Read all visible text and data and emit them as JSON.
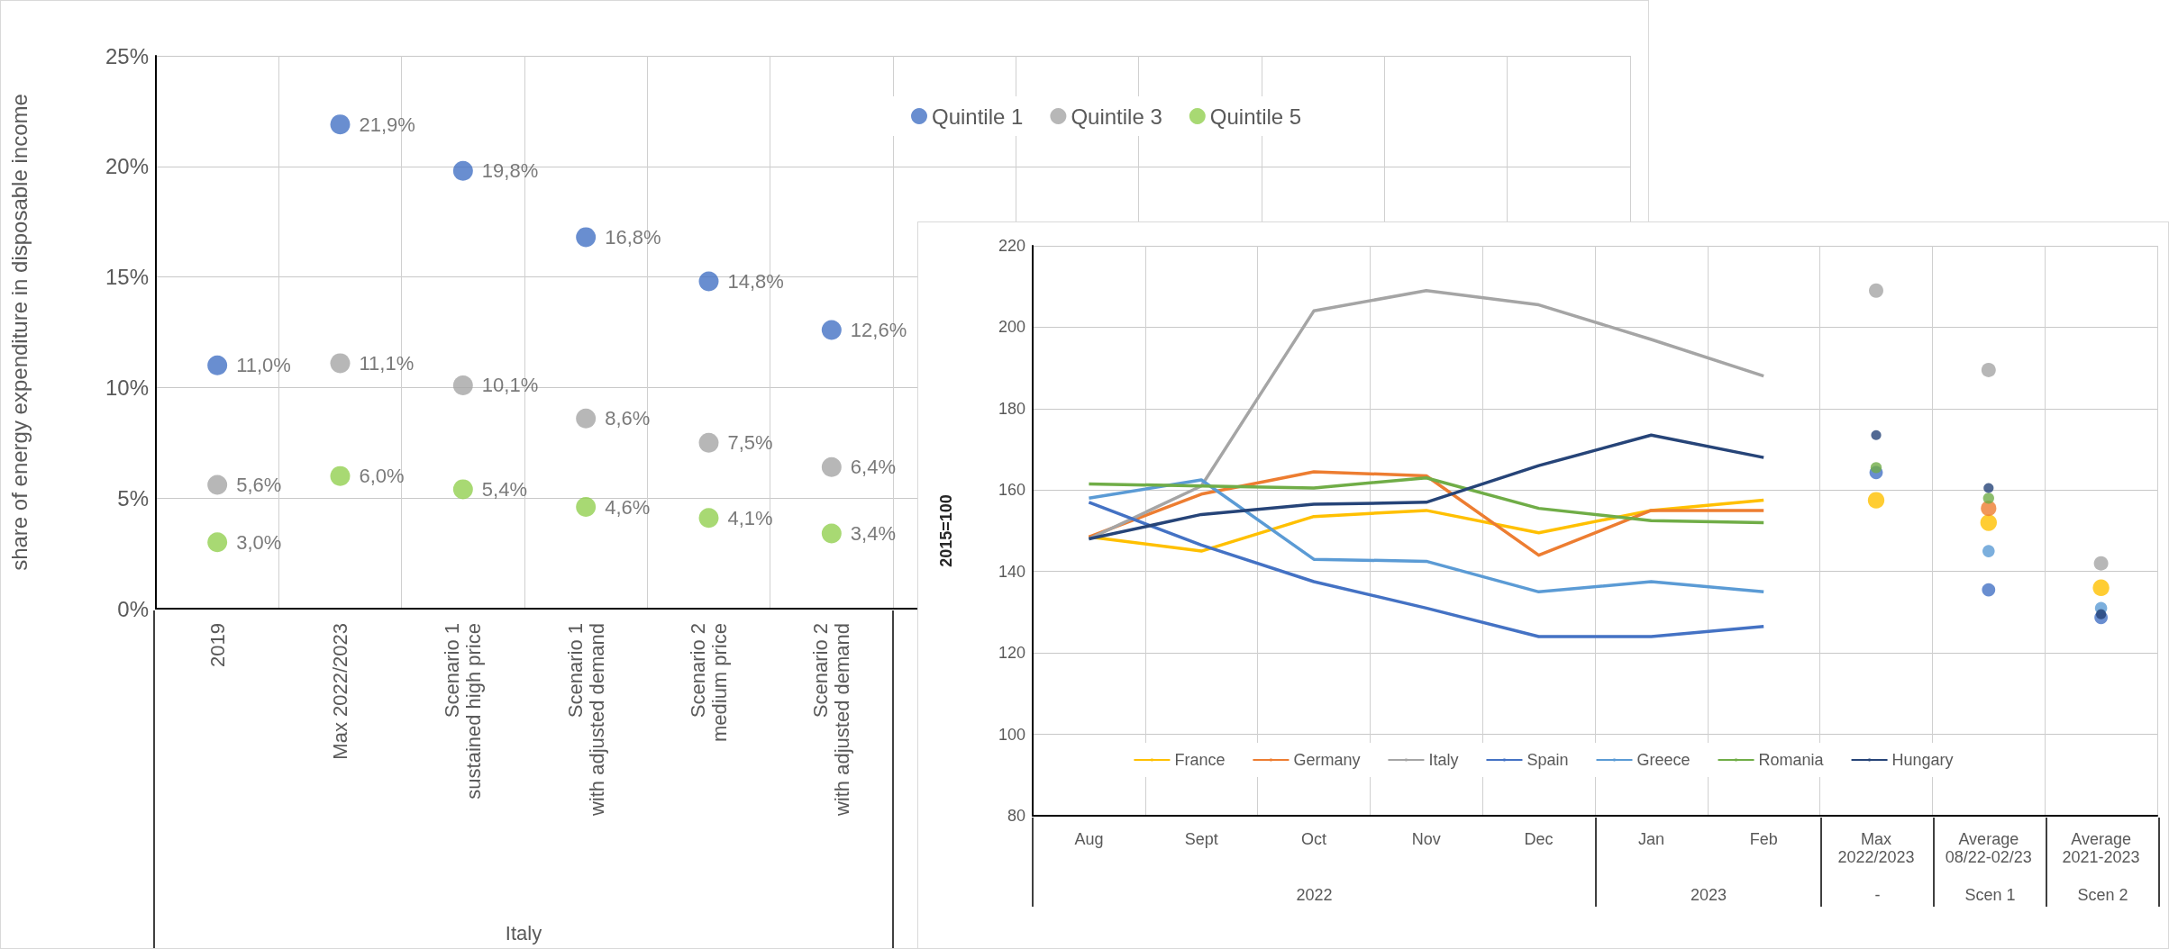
{
  "chart_data": [
    {
      "type": "scatter",
      "ylabel": "share of energy expenditure in disposable income",
      "categories": [
        "2019",
        "Max 2022/2023",
        "Scenario 1\nsustained high price",
        "Scenario 1\nwith adjusted demand",
        "Scenario 2\nmedium price",
        "Scenario 2\nwith adjusted demand",
        null,
        null,
        null,
        null,
        null,
        null
      ],
      "series": [
        {
          "name": "Quintile 1",
          "color": "#4472c4",
          "values": [
            11.0,
            21.9,
            19.8,
            16.8,
            14.8,
            12.6,
            null,
            null,
            null,
            null,
            null,
            null
          ],
          "value_labels": [
            "11,0%",
            "21,9%",
            "19,8%",
            "16,8%",
            "14,8%",
            "12,6%",
            null,
            null,
            null,
            null,
            null,
            null
          ]
        },
        {
          "name": "Quintile 3",
          "color": "#a5a5a5",
          "values": [
            5.6,
            11.1,
            10.1,
            8.6,
            7.5,
            6.4,
            null,
            null,
            null,
            null,
            null,
            null
          ],
          "value_labels": [
            "5,6%",
            "11,1%",
            "10,1%",
            "8,6%",
            "7,5%",
            "6,4%",
            null,
            null,
            null,
            null,
            null,
            null
          ]
        },
        {
          "name": "Quintile 5",
          "color": "#92d050",
          "values": [
            3.0,
            6.0,
            5.4,
            4.6,
            4.1,
            3.4,
            null,
            null,
            null,
            null,
            null,
            null
          ],
          "value_labels": [
            "3,0%",
            "6,0%",
            "5,4%",
            "4,6%",
            "4,1%",
            "3,4%",
            null,
            null,
            null,
            null,
            null,
            null
          ]
        }
      ],
      "ylim": [
        0,
        25
      ],
      "yticks": [
        {
          "value": 0,
          "label": "0%"
        },
        {
          "value": 5,
          "label": "5%"
        },
        {
          "value": 10,
          "label": "10%"
        },
        {
          "value": 15,
          "label": "15%"
        },
        {
          "value": 20,
          "label": "20%"
        },
        {
          "value": 25,
          "label": "25%"
        }
      ],
      "grid": true,
      "legend": "top right",
      "marker": "circle",
      "annotations": [
        "Italy"
      ]
    },
    {
      "type": "line",
      "ylabel": "2015=100",
      "categories": [
        "Aug",
        "Sept",
        "Oct",
        "Nov",
        "Dec",
        "Jan",
        "Feb",
        "Max\n2022/2023",
        "Average\n08/22-02/23",
        "Average\n2021-2023"
      ],
      "series": [
        {
          "name": "France",
          "color": "#ffc000",
          "values": [
            148.5,
            145,
            153.5,
            155,
            149.5,
            155,
            157.5,
            null,
            null,
            null
          ]
        },
        {
          "name": "Germany",
          "color": "#ed7d31",
          "values": [
            148.5,
            159,
            164.5,
            163.5,
            144,
            155,
            155,
            null,
            null,
            null
          ]
        },
        {
          "name": "Italy",
          "color": "#a5a5a5",
          "values": [
            148,
            161,
            204,
            209,
            205.5,
            197,
            188,
            null,
            null,
            null
          ]
        },
        {
          "name": "Spain",
          "color": "#4472c4",
          "values": [
            157,
            146.5,
            137.5,
            131,
            124,
            124,
            126.5,
            null,
            null,
            null
          ]
        },
        {
          "name": "Greece",
          "color": "#5b9bd5",
          "values": [
            158,
            162.5,
            143,
            142.5,
            135,
            137.5,
            135,
            null,
            null,
            null
          ]
        },
        {
          "name": "Romania",
          "color": "#70ad47",
          "values": [
            161.5,
            161,
            160.5,
            163,
            155.5,
            152.5,
            152,
            null,
            null,
            null
          ]
        },
        {
          "name": "Hungary",
          "color": "#264478",
          "values": [
            148,
            154,
            156.5,
            157,
            166,
            173.5,
            168,
            null,
            null,
            null
          ]
        },
        {
          "type": "scatter",
          "marker": "circle",
          "color": "#ffc000",
          "values": [
            null,
            null,
            null,
            null,
            null,
            null,
            null,
            157.5,
            152,
            136
          ]
        },
        {
          "type": "scatter",
          "marker": "circle",
          "color": "#ed7d31",
          "values": [
            null,
            null,
            null,
            null,
            null,
            null,
            null,
            null,
            155.5,
            null
          ]
        },
        {
          "type": "scatter",
          "marker": "circle",
          "color": "#a5a5a5",
          "values": [
            null,
            null,
            null,
            null,
            null,
            null,
            null,
            209,
            189.5,
            142
          ]
        },
        {
          "type": "scatter",
          "marker": "circle",
          "color": "#4472c4",
          "values": [
            null,
            null,
            null,
            null,
            null,
            null,
            null,
            164.3,
            135.5,
            128.7
          ]
        },
        {
          "type": "scatter",
          "marker": "circle",
          "color": "#5b9bd5",
          "values": [
            null,
            null,
            null,
            null,
            null,
            null,
            null,
            null,
            145,
            131
          ]
        },
        {
          "type": "scatter",
          "marker": "circle",
          "color": "#70ad47",
          "values": [
            null,
            null,
            null,
            null,
            null,
            null,
            null,
            165.5,
            158,
            null
          ]
        },
        {
          "type": "scatter",
          "marker": "circle",
          "color": "#264478",
          "values": [
            null,
            null,
            null,
            null,
            null,
            null,
            null,
            173.5,
            160.5,
            129.5
          ]
        }
      ],
      "ylim": [
        80,
        220
      ],
      "yticks": [
        80,
        100,
        120,
        140,
        160,
        180,
        200,
        220
      ],
      "grid": true,
      "legend": "bottom",
      "marker": "none",
      "annotations": [
        "2022",
        "2023",
        "-",
        "Scen 1",
        "Scen 2"
      ]
    }
  ]
}
